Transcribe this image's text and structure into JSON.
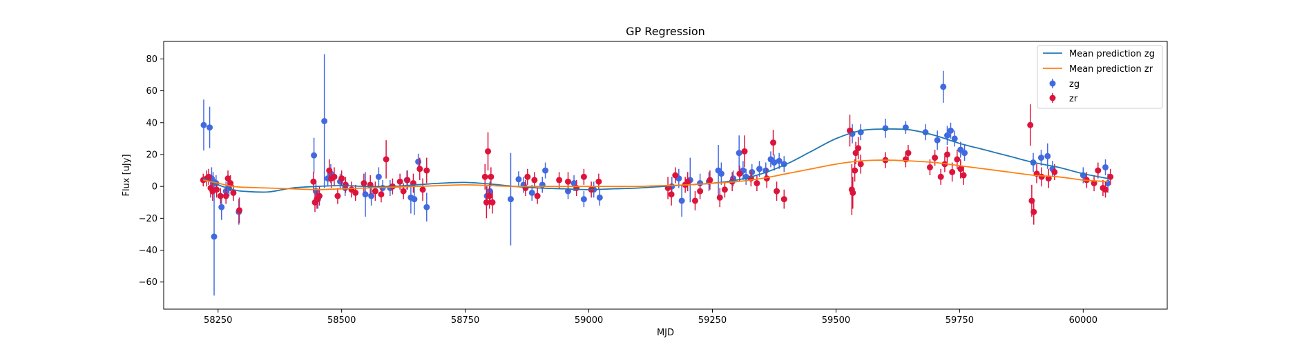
{
  "chart_data": {
    "type": "scatter",
    "title": "GP Regression",
    "xlabel": "MJD",
    "ylabel": "Flux [uJy]",
    "xlim": [
      58140,
      60170
    ],
    "ylim": [
      -77,
      91
    ],
    "xticks": [
      58250,
      58500,
      58750,
      59000,
      59250,
      59500,
      59750,
      60000
    ],
    "yticks": [
      -60,
      -40,
      -20,
      0,
      20,
      40,
      60,
      80
    ],
    "grid": false,
    "legend_position": "top-right",
    "legend": [
      {
        "label": "Mean prediction zg",
        "kind": "line",
        "color": "#1f77b4"
      },
      {
        "label": "Mean prediction zr",
        "kind": "line",
        "color": "#ff7f0e"
      },
      {
        "label": "zg",
        "kind": "errorbar",
        "color": "#4169e1"
      },
      {
        "label": "zr",
        "kind": "errorbar",
        "color": "#dc143c"
      }
    ],
    "lines": [
      {
        "name": "Mean prediction zg",
        "color": "#1f77b4",
        "x": [
          58220,
          58250,
          58280,
          58300,
          58350,
          58400,
          58450,
          58500,
          58550,
          58600,
          58650,
          58700,
          58750,
          58800,
          58850,
          58900,
          58950,
          59000,
          59050,
          59100,
          59150,
          59200,
          59250,
          59300,
          59350,
          59400,
          59450,
          59500,
          59550,
          59600,
          59650,
          59700,
          59750,
          59800,
          59850,
          59900,
          59950,
          60000,
          60050
        ],
        "y": [
          5,
          1,
          -2,
          -3,
          -3.5,
          -1,
          0,
          0.5,
          0,
          0,
          1,
          2,
          2.5,
          1.5,
          0,
          -1,
          -1.5,
          -2,
          -1.5,
          -1,
          0,
          1,
          2,
          4,
          8,
          14,
          22,
          30,
          35,
          36,
          35.5,
          32,
          27,
          23,
          19,
          15,
          12,
          8,
          5
        ]
      },
      {
        "name": "Mean prediction zr",
        "color": "#ff7f0e",
        "x": [
          58220,
          58250,
          58280,
          58300,
          58350,
          58400,
          58450,
          58500,
          58550,
          58600,
          58650,
          58700,
          58750,
          58800,
          58850,
          58900,
          58950,
          59000,
          59050,
          59100,
          59150,
          59200,
          59250,
          59300,
          59350,
          59400,
          59450,
          59500,
          59550,
          59600,
          59650,
          59700,
          59750,
          59800,
          59850,
          59900,
          59950,
          60000,
          60050
        ],
        "y": [
          4,
          2,
          0,
          -0.5,
          -1,
          -1.5,
          -2,
          -1.5,
          -1,
          -0.5,
          0,
          0.5,
          1,
          0.5,
          0,
          0,
          0,
          0,
          0,
          0,
          0.5,
          1,
          2,
          3,
          5,
          8,
          11,
          14,
          16,
          16.5,
          16,
          15,
          13,
          11,
          9,
          7,
          6,
          4,
          3
        ]
      }
    ],
    "series": [
      {
        "name": "zg",
        "color": "#4169e1",
        "points": [
          [
            58221,
            38.5,
            16
          ],
          [
            58233,
            37,
            13
          ],
          [
            58237,
            5,
            7
          ],
          [
            58240,
            3,
            6
          ],
          [
            58242,
            -31.5,
            37
          ],
          [
            58246,
            2,
            5
          ],
          [
            58257,
            -13,
            8
          ],
          [
            58266,
            -3,
            6
          ],
          [
            58272,
            -1,
            5
          ],
          [
            58292,
            -16,
            8
          ],
          [
            58444,
            19.5,
            11
          ],
          [
            58448,
            -3,
            6
          ],
          [
            58452,
            -8,
            6
          ],
          [
            58465,
            41,
            42
          ],
          [
            58472,
            5,
            5
          ],
          [
            58478,
            8,
            6
          ],
          [
            58497,
            3,
            5
          ],
          [
            58507,
            -1,
            5
          ],
          [
            58548,
            -5,
            14
          ],
          [
            58560,
            -6,
            6
          ],
          [
            58575,
            6,
            6
          ],
          [
            58583,
            -1,
            5
          ],
          [
            58598,
            -1,
            5
          ],
          [
            58632,
            4,
            6
          ],
          [
            58640,
            -7,
            10
          ],
          [
            58647,
            -8,
            10
          ],
          [
            58655,
            15.5,
            5
          ],
          [
            58672,
            -13,
            9
          ],
          [
            58794,
            -6,
            6
          ],
          [
            58800,
            -3,
            6
          ],
          [
            58842,
            -8,
            29
          ],
          [
            58858,
            4.5,
            5
          ],
          [
            58868,
            1,
            5
          ],
          [
            58885,
            -4,
            5
          ],
          [
            58906,
            1,
            5
          ],
          [
            58912,
            10,
            5
          ],
          [
            58958,
            -3,
            5
          ],
          [
            58970,
            2,
            5
          ],
          [
            58990,
            -8,
            5
          ],
          [
            59010,
            -2,
            5
          ],
          [
            59022,
            -7,
            5
          ],
          [
            59168,
            0,
            6
          ],
          [
            59182,
            5,
            6
          ],
          [
            59188,
            -9,
            10
          ],
          [
            59205,
            4,
            14
          ],
          [
            59225,
            2,
            6
          ],
          [
            59243,
            3,
            6
          ],
          [
            59262,
            10,
            16
          ],
          [
            59268,
            8,
            7
          ],
          [
            59292,
            5,
            5
          ],
          [
            59304,
            21,
            11
          ],
          [
            59312,
            10,
            6
          ],
          [
            59318,
            6,
            5
          ],
          [
            59330,
            9,
            5
          ],
          [
            59345,
            11,
            5
          ],
          [
            59358,
            10,
            5
          ],
          [
            59368,
            17,
            5
          ],
          [
            59375,
            15,
            5
          ],
          [
            59385,
            16,
            5
          ],
          [
            59395,
            14,
            5
          ],
          [
            59533,
            33,
            6
          ],
          [
            59550,
            34,
            5
          ],
          [
            59600,
            36.5,
            6
          ],
          [
            59641,
            37,
            4
          ],
          [
            59681,
            34,
            5
          ],
          [
            59705,
            29,
            6
          ],
          [
            59717,
            62.5,
            10
          ],
          [
            59725,
            32,
            6
          ],
          [
            59732,
            35,
            5
          ],
          [
            59740,
            30,
            5
          ],
          [
            59752,
            23,
            5
          ],
          [
            59760,
            21,
            5
          ],
          [
            59899,
            15,
            6
          ],
          [
            59915,
            18,
            5
          ],
          [
            59928,
            19,
            8
          ],
          [
            59938,
            11,
            5
          ],
          [
            60000,
            7,
            5
          ],
          [
            60045,
            12,
            5
          ],
          [
            60050,
            2,
            6
          ]
        ]
      },
      {
        "name": "zr",
        "color": "#dc143c",
        "points": [
          [
            58220,
            4,
            4
          ],
          [
            58227,
            5,
            5
          ],
          [
            58231,
            6,
            5
          ],
          [
            58235,
            -1,
            6
          ],
          [
            58239,
            -3,
            6
          ],
          [
            58247,
            -2,
            5
          ],
          [
            58255,
            -6,
            5
          ],
          [
            58266,
            -6,
            5
          ],
          [
            58270,
            5,
            5
          ],
          [
            58275,
            2,
            5
          ],
          [
            58281,
            -4,
            5
          ],
          [
            58293,
            -15,
            8
          ],
          [
            58443,
            3,
            6
          ],
          [
            58446,
            -10,
            6
          ],
          [
            58450,
            -8,
            6
          ],
          [
            58455,
            -6,
            6
          ],
          [
            58475,
            10,
            7
          ],
          [
            58479,
            5,
            6
          ],
          [
            58485,
            6,
            6
          ],
          [
            58492,
            -6,
            5
          ],
          [
            58500,
            5,
            5
          ],
          [
            58508,
            1,
            5
          ],
          [
            58520,
            -2,
            5
          ],
          [
            58528,
            -4,
            5
          ],
          [
            58545,
            2,
            6
          ],
          [
            58558,
            1,
            6
          ],
          [
            58568,
            -3,
            6
          ],
          [
            58580,
            -5,
            5
          ],
          [
            58590,
            17,
            12
          ],
          [
            58603,
            0,
            5
          ],
          [
            58618,
            3,
            5
          ],
          [
            58625,
            -3,
            5
          ],
          [
            58633,
            4,
            6
          ],
          [
            58645,
            2,
            6
          ],
          [
            58658,
            11,
            7
          ],
          [
            58664,
            -2,
            7
          ],
          [
            58672,
            10,
            8
          ],
          [
            58790,
            6,
            8
          ],
          [
            58793,
            -10,
            10
          ],
          [
            58796,
            22,
            12
          ],
          [
            58799,
            -6,
            8
          ],
          [
            58802,
            6,
            6
          ],
          [
            58805,
            -10,
            7
          ],
          [
            58872,
            -1,
            5
          ],
          [
            58876,
            6,
            5
          ],
          [
            58890,
            4,
            5
          ],
          [
            58896,
            -6,
            5
          ],
          [
            58940,
            4,
            5
          ],
          [
            58958,
            3,
            6
          ],
          [
            58975,
            -1,
            5
          ],
          [
            58990,
            6,
            5
          ],
          [
            59005,
            -2,
            5
          ],
          [
            59020,
            3,
            5
          ],
          [
            59160,
            -1,
            7
          ],
          [
            59167,
            -5,
            7
          ],
          [
            59175,
            7,
            5
          ],
          [
            59195,
            1,
            5
          ],
          [
            59200,
            3,
            6
          ],
          [
            59215,
            -9,
            6
          ],
          [
            59225,
            -3,
            5
          ],
          [
            59245,
            4,
            6
          ],
          [
            59265,
            -7,
            6
          ],
          [
            59275,
            -2,
            5
          ],
          [
            59290,
            3,
            6
          ],
          [
            59305,
            8,
            5
          ],
          [
            59315,
            22,
            10
          ],
          [
            59328,
            5,
            5
          ],
          [
            59340,
            2,
            5
          ],
          [
            59360,
            5,
            6
          ],
          [
            59373,
            27.5,
            8
          ],
          [
            59380,
            -3,
            6
          ],
          [
            59395,
            -8,
            6
          ],
          [
            59528,
            35,
            10
          ],
          [
            59532,
            -2,
            16
          ],
          [
            59534,
            -4,
            10
          ],
          [
            59538,
            10,
            7
          ],
          [
            59540,
            21,
            7
          ],
          [
            59545,
            24,
            7
          ],
          [
            59550,
            14,
            6
          ],
          [
            59600,
            16.5,
            5
          ],
          [
            59641,
            17,
            5
          ],
          [
            59646,
            21,
            5
          ],
          [
            59690,
            12,
            5
          ],
          [
            59700,
            18,
            5
          ],
          [
            59712,
            6,
            5
          ],
          [
            59720,
            14,
            5
          ],
          [
            59725,
            20,
            5
          ],
          [
            59735,
            9,
            6
          ],
          [
            59745,
            17,
            6
          ],
          [
            59752,
            11,
            6
          ],
          [
            59758,
            7,
            6
          ],
          [
            59893,
            38.5,
            13
          ],
          [
            59896,
            -9,
            10
          ],
          [
            59900,
            -16,
            8
          ],
          [
            59906,
            8,
            6
          ],
          [
            59916,
            6,
            6
          ],
          [
            59930,
            5,
            6
          ],
          [
            59942,
            9,
            5
          ],
          [
            60007,
            4,
            5
          ],
          [
            60022,
            2,
            5
          ],
          [
            60030,
            10,
            5
          ],
          [
            60040,
            -1,
            5
          ],
          [
            60045,
            -2,
            5
          ],
          [
            60055,
            6,
            5
          ]
        ]
      }
    ]
  }
}
